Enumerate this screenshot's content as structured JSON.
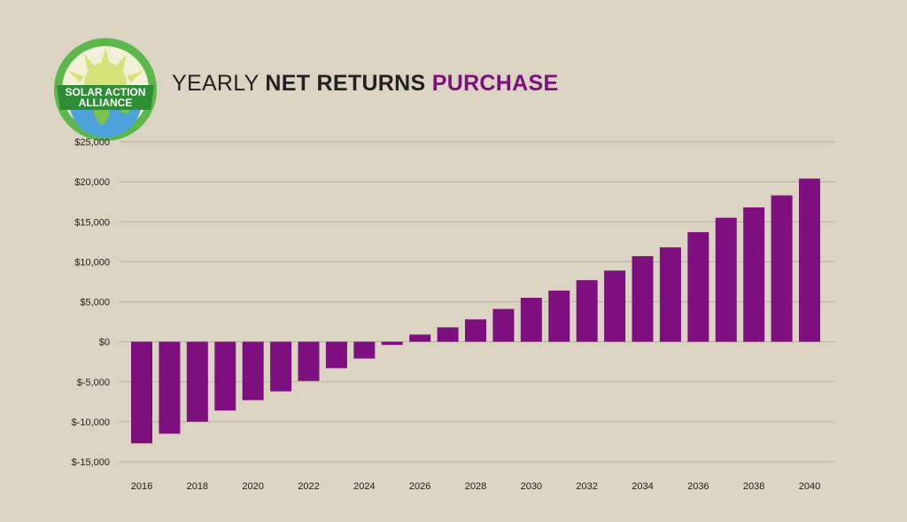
{
  "header": {
    "logo_line1": "SOLAR ACTION",
    "logo_line2": "ALLIANCE",
    "title_part1": "YEARLY",
    "title_part2": "NET RETURNS",
    "title_part3": "PURCHASE"
  },
  "colors": {
    "background": "#dcd4c3",
    "bar": "#7d0f7f",
    "title_accent": "#7d0f7f",
    "gridline": "#b9b09e",
    "logo_ring": "#5cb84c",
    "logo_ribbon": "#2f8d35",
    "logo_sun": "#d6e27a",
    "logo_ocean": "#4da3d9"
  },
  "chart_data": {
    "type": "bar",
    "title": "YEARLY NET RETURNS PURCHASE",
    "xlabel": "",
    "ylabel": "",
    "ylim": [
      -15000,
      25000
    ],
    "y_ticks": [
      25000,
      20000,
      15000,
      10000,
      5000,
      0,
      -5000,
      -10000,
      -15000
    ],
    "y_tick_labels": [
      "$25,000",
      "$20,000",
      "$15,000",
      "$10,000",
      "$5,000",
      "$0",
      "$-5,000",
      "$-10,000",
      "$-15,000"
    ],
    "categories": [
      "2016",
      "2017",
      "2018",
      "2019",
      "2020",
      "2021",
      "2022",
      "2023",
      "2024",
      "2025",
      "2026",
      "2027",
      "2028",
      "2029",
      "2030",
      "2031",
      "2032",
      "2033",
      "2034",
      "2035",
      "2036",
      "2037",
      "2038",
      "2039",
      "2040"
    ],
    "x_tick_labels": [
      "2016",
      "2018",
      "2020",
      "2022",
      "2024",
      "2026",
      "2028",
      "2030",
      "2032",
      "2034",
      "2036",
      "2038",
      "2040"
    ],
    "values": [
      -12700,
      -11500,
      -10000,
      -8600,
      -7300,
      -6200,
      -4900,
      -3300,
      -2100,
      -400,
      900,
      1800,
      2800,
      4100,
      5500,
      6400,
      7700,
      8900,
      10700,
      11800,
      13700,
      15500,
      16800,
      18300,
      20400
    ],
    "grid": true,
    "legend": "none"
  }
}
